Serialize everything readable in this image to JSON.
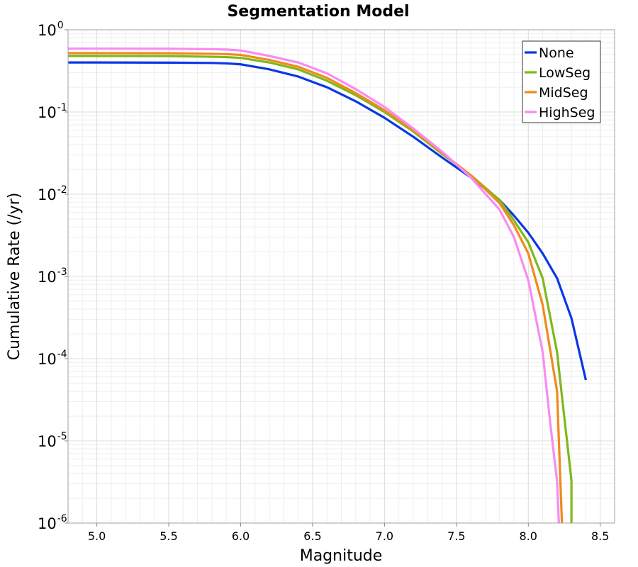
{
  "chart_data": {
    "type": "line",
    "title": "Segmentation Model",
    "xlabel": "Magnitude",
    "ylabel": "Cumulative Rate (/yr)",
    "xlim": [
      4.8,
      8.6
    ],
    "ylim": [
      1e-06,
      1
    ],
    "yscale": "log",
    "grid": true,
    "legend_position": "top-right",
    "x_ticks": [
      "5.0",
      "5.5",
      "6.0",
      "6.5",
      "7.0",
      "7.5",
      "8.0",
      "8.5"
    ],
    "x_tick_values": [
      5.0,
      5.5,
      6.0,
      6.5,
      7.0,
      7.5,
      8.0,
      8.5
    ],
    "y_ticks": [
      {
        "base": "10",
        "exp": "0",
        "value": 1
      },
      {
        "base": "10",
        "exp": "-1",
        "value": 0.1
      },
      {
        "base": "10",
        "exp": "-2",
        "value": 0.01
      },
      {
        "base": "10",
        "exp": "-3",
        "value": 0.001
      },
      {
        "base": "10",
        "exp": "-4",
        "value": 0.0001
      },
      {
        "base": "10",
        "exp": "-5",
        "value": 1e-05
      },
      {
        "base": "10",
        "exp": "-6",
        "value": 1e-06
      }
    ],
    "series": [
      {
        "name": "None",
        "color": "#0a37e6",
        "points": [
          [
            4.8,
            0.4
          ],
          [
            5.0,
            0.4
          ],
          [
            5.5,
            0.398
          ],
          [
            5.8,
            0.395
          ],
          [
            5.9,
            0.39
          ],
          [
            6.0,
            0.38
          ],
          [
            6.2,
            0.33
          ],
          [
            6.4,
            0.27
          ],
          [
            6.6,
            0.2
          ],
          [
            6.8,
            0.135
          ],
          [
            7.0,
            0.085
          ],
          [
            7.2,
            0.05
          ],
          [
            7.4,
            0.028
          ],
          [
            7.6,
            0.016
          ],
          [
            7.8,
            0.0085
          ],
          [
            7.9,
            0.0055
          ],
          [
            8.0,
            0.0034
          ],
          [
            8.1,
            0.0019
          ],
          [
            8.2,
            0.00095
          ],
          [
            8.3,
            0.00031
          ],
          [
            8.4,
            5.5e-05
          ]
        ]
      },
      {
        "name": "LowSeg",
        "color": "#7fb81a",
        "points": [
          [
            4.8,
            0.48
          ],
          [
            5.0,
            0.48
          ],
          [
            5.5,
            0.478
          ],
          [
            5.8,
            0.47
          ],
          [
            5.9,
            0.465
          ],
          [
            6.0,
            0.455
          ],
          [
            6.2,
            0.4
          ],
          [
            6.4,
            0.33
          ],
          [
            6.6,
            0.24
          ],
          [
            6.8,
            0.16
          ],
          [
            7.0,
            0.1
          ],
          [
            7.2,
            0.058
          ],
          [
            7.4,
            0.031
          ],
          [
            7.6,
            0.017
          ],
          [
            7.8,
            0.0085
          ],
          [
            7.9,
            0.0048
          ],
          [
            8.0,
            0.0026
          ],
          [
            8.1,
            0.00095
          ],
          [
            8.2,
            0.00012
          ],
          [
            8.23,
            4e-05
          ],
          [
            8.3,
            3.3e-06
          ],
          [
            8.3,
            5e-07
          ]
        ]
      },
      {
        "name": "MidSeg",
        "color": "#f08a1c",
        "points": [
          [
            4.8,
            0.52
          ],
          [
            5.0,
            0.52
          ],
          [
            5.5,
            0.518
          ],
          [
            5.8,
            0.51
          ],
          [
            5.9,
            0.505
          ],
          [
            6.0,
            0.495
          ],
          [
            6.2,
            0.43
          ],
          [
            6.4,
            0.355
          ],
          [
            6.6,
            0.26
          ],
          [
            6.8,
            0.17
          ],
          [
            7.0,
            0.105
          ],
          [
            7.2,
            0.06
          ],
          [
            7.4,
            0.032
          ],
          [
            7.6,
            0.017
          ],
          [
            7.8,
            0.0078
          ],
          [
            7.9,
            0.0042
          ],
          [
            8.0,
            0.0019
          ],
          [
            8.1,
            0.00045
          ],
          [
            8.2,
            4e-05
          ],
          [
            8.24,
            5e-07
          ]
        ]
      },
      {
        "name": "HighSeg",
        "color": "#f78cf2",
        "points": [
          [
            4.8,
            0.59
          ],
          [
            5.0,
            0.59
          ],
          [
            5.5,
            0.588
          ],
          [
            5.8,
            0.58
          ],
          [
            5.9,
            0.575
          ],
          [
            6.0,
            0.56
          ],
          [
            6.2,
            0.48
          ],
          [
            6.4,
            0.4
          ],
          [
            6.6,
            0.295
          ],
          [
            6.8,
            0.19
          ],
          [
            7.0,
            0.115
          ],
          [
            7.2,
            0.063
          ],
          [
            7.4,
            0.033
          ],
          [
            7.6,
            0.016
          ],
          [
            7.8,
            0.0065
          ],
          [
            7.9,
            0.003
          ],
          [
            8.0,
            0.0009
          ],
          [
            8.1,
            0.00012
          ],
          [
            8.15,
            1.8e-05
          ],
          [
            8.2,
            3.2e-06
          ],
          [
            8.22,
            5e-07
          ]
        ]
      }
    ]
  }
}
